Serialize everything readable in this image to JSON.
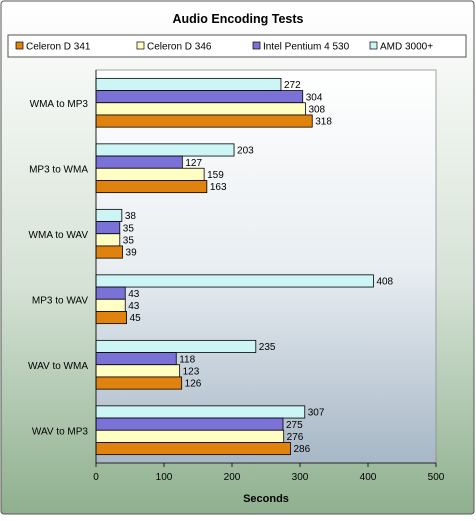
{
  "chart_data": {
    "type": "bar",
    "orientation": "horizontal",
    "title": "Audio Encoding Tests",
    "xlabel": "Seconds",
    "ylabel": "",
    "xlim": [
      0,
      500
    ],
    "x_ticks": [
      0,
      100,
      200,
      300,
      400,
      500
    ],
    "grid": false,
    "legend_position": "top",
    "categories": [
      "WMA to MP3",
      "MP3 to WMA",
      "WMA to WAV",
      "MP3 to WAV",
      "WAV to WMA",
      "WAV to MP3"
    ],
    "series": [
      {
        "name": "Celeron D 341",
        "color": "#e0820e",
        "values": [
          318,
          163,
          39,
          45,
          126,
          286
        ]
      },
      {
        "name": "Celeron D 346",
        "color": "#ffffc4",
        "values": [
          308,
          159,
          35,
          43,
          123,
          276
        ]
      },
      {
        "name": "Intel  Pentium 4 530",
        "color": "#7b72d8",
        "values": [
          304,
          127,
          35,
          43,
          118,
          275
        ]
      },
      {
        "name": "AMD 3000+",
        "color": "#cdf5f5",
        "values": [
          272,
          203,
          38,
          408,
          235,
          307
        ]
      }
    ]
  }
}
